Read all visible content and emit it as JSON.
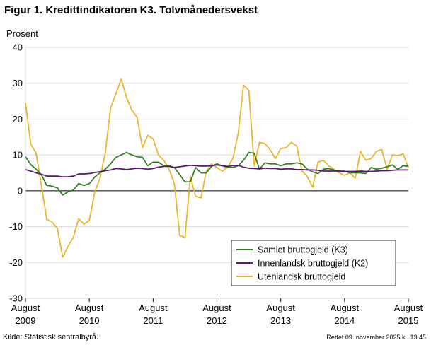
{
  "title": "Figur 1. Kredittindikatoren K3. Tolvmånedersvekst",
  "source": "Kilde: Statistisk sentralbyrå.",
  "footnote": "Rettet 09. november 2025  kl. 13.45",
  "chart_data": {
    "type": "line",
    "ylabel": "Prosent",
    "ylim": [
      -30,
      40
    ],
    "yticks": [
      -30,
      -20,
      -10,
      0,
      10,
      20,
      30,
      40
    ],
    "xlim": [
      "2009-08",
      "2015-08"
    ],
    "xticks": [
      {
        "month": "August",
        "year": "2009"
      },
      {
        "month": "August",
        "year": "2010"
      },
      {
        "month": "August",
        "year": "2011"
      },
      {
        "month": "August",
        "year": "2012"
      },
      {
        "month": "August",
        "year": "2013"
      },
      {
        "month": "August",
        "year": "2014"
      },
      {
        "month": "August",
        "year": "2015"
      }
    ],
    "grid": "horizontal",
    "legend_position": "bottom-right",
    "series": [
      {
        "name": "Samlet bruttogjeld (K3)",
        "color": "#2e7d1e",
        "points": [
          [
            "2009-08",
            9.5
          ],
          [
            "2009-09",
            7.3
          ],
          [
            "2009-10",
            6
          ],
          [
            "2009-11",
            4.5
          ],
          [
            "2009-12",
            1.5
          ],
          [
            "2010-01",
            1.3
          ],
          [
            "2010-02",
            0.8
          ],
          [
            "2010-03",
            -1.2
          ],
          [
            "2010-04",
            -0.3
          ],
          [
            "2010-05",
            0.2
          ],
          [
            "2010-06",
            2
          ],
          [
            "2010-07",
            1.5
          ],
          [
            "2010-08",
            2
          ],
          [
            "2010-09",
            3.8
          ],
          [
            "2010-10",
            5
          ],
          [
            "2010-11",
            6
          ],
          [
            "2010-12",
            7.5
          ],
          [
            "2011-01",
            9.3
          ],
          [
            "2011-02",
            10
          ],
          [
            "2011-03",
            10.7
          ],
          [
            "2011-04",
            10
          ],
          [
            "2011-05",
            9.5
          ],
          [
            "2011-06",
            9.3
          ],
          [
            "2011-07",
            7
          ],
          [
            "2011-08",
            8
          ],
          [
            "2011-09",
            8
          ],
          [
            "2011-10",
            7
          ],
          [
            "2011-11",
            7
          ],
          [
            "2011-12",
            6.5
          ],
          [
            "2012-01",
            4.5
          ],
          [
            "2012-02",
            2.5
          ],
          [
            "2012-03",
            2.5
          ],
          [
            "2012-04",
            6.5
          ],
          [
            "2012-05",
            5
          ],
          [
            "2012-06",
            5
          ],
          [
            "2012-07",
            6.8
          ],
          [
            "2012-08",
            7.5
          ],
          [
            "2012-09",
            7
          ],
          [
            "2012-10",
            6.5
          ],
          [
            "2012-11",
            6.5
          ],
          [
            "2012-12",
            7
          ],
          [
            "2013-01",
            8.5
          ],
          [
            "2013-02",
            10.7
          ],
          [
            "2013-03",
            10.5
          ],
          [
            "2013-04",
            6
          ],
          [
            "2013-05",
            7.8
          ],
          [
            "2013-06",
            7.5
          ],
          [
            "2013-07",
            7.5
          ],
          [
            "2013-08",
            7
          ],
          [
            "2013-09",
            7.5
          ],
          [
            "2013-10",
            7.5
          ],
          [
            "2013-11",
            7.8
          ],
          [
            "2013-12",
            7.5
          ],
          [
            "2014-01",
            6
          ],
          [
            "2014-02",
            5.3
          ],
          [
            "2014-03",
            4.8
          ],
          [
            "2014-04",
            6
          ],
          [
            "2014-05",
            6.2
          ],
          [
            "2014-06",
            5.8
          ],
          [
            "2014-07",
            5.5
          ],
          [
            "2014-08",
            5.5
          ],
          [
            "2014-09",
            5
          ],
          [
            "2014-10",
            5
          ],
          [
            "2014-11",
            5
          ],
          [
            "2014-12",
            4.8
          ],
          [
            "2015-01",
            6.5
          ],
          [
            "2015-02",
            6
          ],
          [
            "2015-03",
            6.3
          ],
          [
            "2015-04",
            6.7
          ],
          [
            "2015-05",
            7.2
          ],
          [
            "2015-06",
            6
          ],
          [
            "2015-07",
            7
          ],
          [
            "2015-08",
            6.8
          ]
        ]
      },
      {
        "name": "Innenlandsk bruttogjeld (K2)",
        "color": "#5b1472",
        "points": [
          [
            "2009-08",
            5.9
          ],
          [
            "2009-09",
            5.5
          ],
          [
            "2009-10",
            5
          ],
          [
            "2009-11",
            4.6
          ],
          [
            "2009-12",
            4.1
          ],
          [
            "2010-01",
            4.1
          ],
          [
            "2010-02",
            4.1
          ],
          [
            "2010-03",
            3.9
          ],
          [
            "2010-04",
            3.9
          ],
          [
            "2010-05",
            4.1
          ],
          [
            "2010-06",
            4.7
          ],
          [
            "2010-07",
            4.7
          ],
          [
            "2010-08",
            4.8
          ],
          [
            "2010-09",
            5.1
          ],
          [
            "2010-10",
            5.3
          ],
          [
            "2010-11",
            5.6
          ],
          [
            "2010-12",
            5.8
          ],
          [
            "2011-01",
            6.2
          ],
          [
            "2011-02",
            6.1
          ],
          [
            "2011-03",
            5.9
          ],
          [
            "2011-04",
            6.1
          ],
          [
            "2011-05",
            6.3
          ],
          [
            "2011-06",
            6.2
          ],
          [
            "2011-07",
            6
          ],
          [
            "2011-08",
            6.2
          ],
          [
            "2011-09",
            6.6
          ],
          [
            "2011-10",
            6.8
          ],
          [
            "2011-11",
            6.8
          ],
          [
            "2011-12",
            6.5
          ],
          [
            "2012-01",
            6.7
          ],
          [
            "2012-02",
            6.9
          ],
          [
            "2012-03",
            7.1
          ],
          [
            "2012-04",
            7
          ],
          [
            "2012-05",
            6.9
          ],
          [
            "2012-06",
            6.9
          ],
          [
            "2012-07",
            7
          ],
          [
            "2012-08",
            7.2
          ],
          [
            "2012-09",
            7
          ],
          [
            "2012-10",
            6.8
          ],
          [
            "2012-11",
            7
          ],
          [
            "2012-12",
            7.1
          ],
          [
            "2013-01",
            6.6
          ],
          [
            "2013-02",
            6.3
          ],
          [
            "2013-03",
            6.2
          ],
          [
            "2013-04",
            6.1
          ],
          [
            "2013-05",
            6.3
          ],
          [
            "2013-06",
            6.2
          ],
          [
            "2013-07",
            6.2
          ],
          [
            "2013-08",
            6
          ],
          [
            "2013-09",
            6.1
          ],
          [
            "2013-10",
            6.1
          ],
          [
            "2013-11",
            5.9
          ],
          [
            "2013-12",
            5.9
          ],
          [
            "2014-01",
            5.8
          ],
          [
            "2014-02",
            5.8
          ],
          [
            "2014-03",
            5.7
          ],
          [
            "2014-04",
            5.5
          ],
          [
            "2014-05",
            5.5
          ],
          [
            "2014-06",
            5.5
          ],
          [
            "2014-07",
            5.5
          ],
          [
            "2014-08",
            5.4
          ],
          [
            "2014-09",
            5.4
          ],
          [
            "2014-10",
            5.4
          ],
          [
            "2014-11",
            5.5
          ],
          [
            "2014-12",
            5.4
          ],
          [
            "2015-01",
            5.4
          ],
          [
            "2015-02",
            5.5
          ],
          [
            "2015-03",
            5.6
          ],
          [
            "2015-04",
            5.6
          ],
          [
            "2015-05",
            5.7
          ],
          [
            "2015-06",
            5.8
          ],
          [
            "2015-07",
            5.8
          ],
          [
            "2015-08",
            5.8
          ]
        ]
      },
      {
        "name": "Utenlandsk bruttogjeld",
        "color": "#e8b427",
        "points": [
          [
            "2009-08",
            24.5
          ],
          [
            "2009-09",
            13
          ],
          [
            "2009-10",
            10.5
          ],
          [
            "2009-11",
            1.5
          ],
          [
            "2009-12",
            -8
          ],
          [
            "2010-01",
            -8.7
          ],
          [
            "2010-02",
            -10.5
          ],
          [
            "2010-03",
            -18.5
          ],
          [
            "2010-04",
            -15.5
          ],
          [
            "2010-05",
            -13
          ],
          [
            "2010-06",
            -7.8
          ],
          [
            "2010-07",
            -9.3
          ],
          [
            "2010-08",
            -8.3
          ],
          [
            "2010-09",
            -0.5
          ],
          [
            "2010-10",
            3.5
          ],
          [
            "2010-11",
            10.5
          ],
          [
            "2010-12",
            23
          ],
          [
            "2011-01",
            27
          ],
          [
            "2011-02",
            31.2
          ],
          [
            "2011-03",
            26
          ],
          [
            "2011-04",
            22.5
          ],
          [
            "2011-05",
            20.5
          ],
          [
            "2011-06",
            12
          ],
          [
            "2011-07",
            15.5
          ],
          [
            "2011-08",
            14.5
          ],
          [
            "2011-09",
            10
          ],
          [
            "2011-10",
            8.5
          ],
          [
            "2011-11",
            6
          ],
          [
            "2011-12",
            2
          ],
          [
            "2012-01",
            -12.5
          ],
          [
            "2012-02",
            -13
          ],
          [
            "2012-03",
            4
          ],
          [
            "2012-04",
            -1.5
          ],
          [
            "2012-05",
            -2
          ],
          [
            "2012-06",
            5.5
          ],
          [
            "2012-07",
            7.5
          ],
          [
            "2012-08",
            6.5
          ],
          [
            "2012-09",
            5.5
          ],
          [
            "2012-10",
            6.5
          ],
          [
            "2012-11",
            9
          ],
          [
            "2012-12",
            16
          ],
          [
            "2013-01",
            29.5
          ],
          [
            "2013-02",
            28
          ],
          [
            "2013-03",
            7
          ],
          [
            "2013-04",
            13.5
          ],
          [
            "2013-05",
            13.2
          ],
          [
            "2013-06",
            11.5
          ],
          [
            "2013-07",
            9
          ],
          [
            "2013-08",
            11.8
          ],
          [
            "2013-09",
            12
          ],
          [
            "2013-10",
            13.5
          ],
          [
            "2013-11",
            12.5
          ],
          [
            "2013-12",
            5.5
          ],
          [
            "2014-01",
            4
          ],
          [
            "2014-02",
            1
          ],
          [
            "2014-03",
            8
          ],
          [
            "2014-04",
            8.5
          ],
          [
            "2014-05",
            7
          ],
          [
            "2014-06",
            6
          ],
          [
            "2014-07",
            5
          ],
          [
            "2014-08",
            4.3
          ],
          [
            "2014-09",
            5
          ],
          [
            "2014-10",
            3.5
          ],
          [
            "2014-11",
            11
          ],
          [
            "2014-12",
            8.5
          ],
          [
            "2015-01",
            9
          ],
          [
            "2015-02",
            11
          ],
          [
            "2015-03",
            11.5
          ],
          [
            "2015-04",
            6
          ],
          [
            "2015-05",
            10
          ],
          [
            "2015-06",
            9.8
          ],
          [
            "2015-07",
            10.3
          ],
          [
            "2015-08",
            6.5
          ]
        ]
      }
    ]
  }
}
